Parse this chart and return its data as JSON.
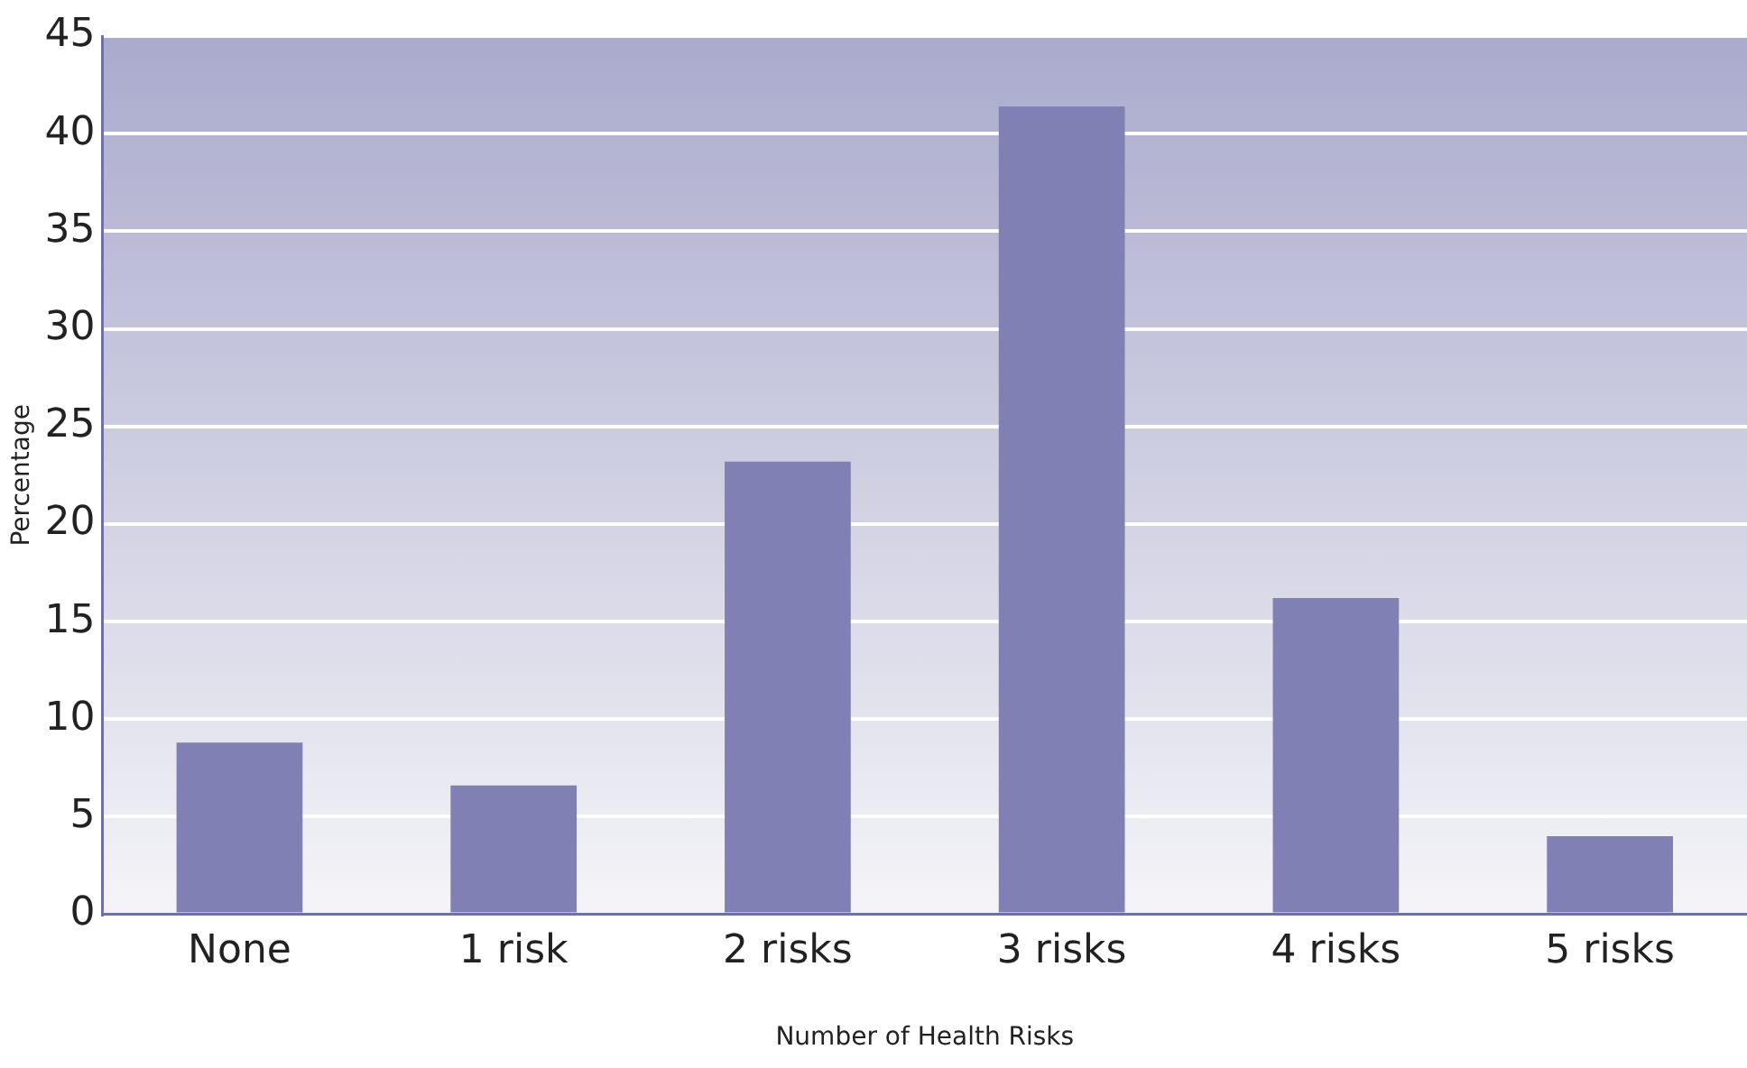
{
  "chart_data": {
    "type": "bar",
    "xlabel": "Number of Health Risks",
    "ylabel": "Percentage",
    "categories": [
      "None",
      "1 risk",
      "2 risks",
      "3 risks",
      "4 risks",
      "5 risks"
    ],
    "values": [
      8.8,
      6.6,
      23.2,
      41.4,
      16.2,
      4.0
    ],
    "color": "#8080b5",
    "ylim": [
      0,
      45
    ],
    "yticks": [
      0,
      5,
      10,
      15,
      20,
      25,
      30,
      35,
      40,
      45
    ],
    "grid": "y",
    "legend": false
  }
}
